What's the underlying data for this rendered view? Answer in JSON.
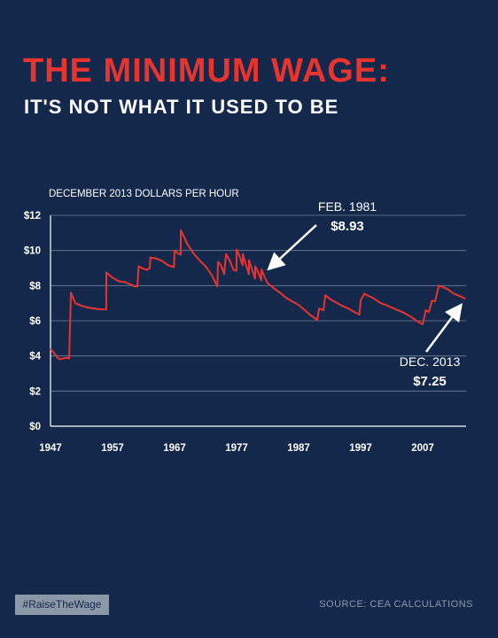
{
  "header": {
    "title": "THE MINIMUM WAGE:",
    "subtitle": "IT'S NOT WHAT IT USED TO BE"
  },
  "chart_data": {
    "type": "line",
    "ylabel": "DECEMBER 2013 DOLLARS PER HOUR",
    "xlim": [
      1947,
      2014
    ],
    "ylim": [
      0,
      12
    ],
    "x_ticks": [
      1947,
      1957,
      1967,
      1977,
      1987,
      1997,
      2007
    ],
    "x_tick_labels": [
      "1947",
      "1957",
      "1967",
      "1977",
      "1987",
      "1997",
      "2007"
    ],
    "y_ticks": [
      0,
      2,
      4,
      6,
      8,
      10,
      12
    ],
    "y_tick_labels": [
      "$0",
      "$2",
      "$4",
      "$6",
      "$8",
      "$10",
      "$12"
    ],
    "grid": true,
    "line_color": "#e8332f",
    "series": [
      {
        "x": [
          1947,
          1947.5,
          1948,
          1948.5,
          1949,
          1949.6,
          1950,
          1950.3,
          1951,
          1952,
          1953,
          1954,
          1955,
          1955.99,
          1956,
          1956.5,
          1957,
          1958,
          1959,
          1960,
          1960.6,
          1961,
          1961.2,
          1962,
          1962.6,
          1963,
          1963.1,
          1964,
          1965,
          1966,
          1966.9,
          1967,
          1967.5,
          1967.99,
          1968,
          1968.5,
          1969,
          1970,
          1971,
          1972,
          1973,
          1973.9,
          1974,
          1974.5,
          1975,
          1975.3,
          1976,
          1976.5,
          1976.99,
          1977,
          1977.4,
          1977.99,
          1978,
          1978.5,
          1978.99,
          1979,
          1979.5,
          1979.99,
          1980,
          1980.5,
          1980.99,
          1981,
          1981.5,
          1982,
          1983,
          1984,
          1985,
          1986,
          1987,
          1988,
          1989,
          1990,
          1990.3,
          1991,
          1991.3,
          1992,
          1993,
          1994,
          1995,
          1996,
          1996.8,
          1997,
          1997.6,
          1998,
          1999,
          2000,
          2001,
          2002,
          2003,
          2004,
          2005,
          2006,
          2007,
          2007.5,
          2008,
          2008.5,
          2009,
          2009.6,
          2010,
          2011,
          2012,
          2013,
          2013.9
        ],
        "y": [
          4.4,
          4.2,
          3.95,
          3.8,
          3.85,
          3.9,
          3.85,
          7.6,
          7.0,
          6.85,
          6.75,
          6.7,
          6.65,
          6.65,
          8.75,
          8.6,
          8.45,
          8.25,
          8.2,
          8.05,
          7.95,
          7.95,
          9.1,
          8.95,
          8.9,
          9.0,
          9.6,
          9.55,
          9.4,
          9.15,
          9.05,
          10.0,
          9.85,
          9.75,
          11.15,
          10.8,
          10.4,
          9.85,
          9.45,
          9.1,
          8.6,
          7.95,
          9.35,
          9.15,
          8.65,
          9.8,
          9.35,
          8.9,
          8.85,
          10.05,
          9.75,
          9.15,
          9.8,
          9.2,
          8.65,
          9.45,
          8.9,
          8.4,
          9.1,
          8.75,
          8.3,
          8.93,
          8.5,
          8.15,
          7.85,
          7.6,
          7.3,
          7.1,
          6.9,
          6.6,
          6.3,
          6.05,
          6.7,
          6.6,
          7.45,
          7.25,
          7.05,
          6.85,
          6.7,
          6.5,
          6.35,
          7.15,
          7.55,
          7.45,
          7.3,
          7.05,
          6.9,
          6.75,
          6.6,
          6.45,
          6.25,
          6.0,
          5.8,
          6.6,
          6.5,
          7.15,
          7.1,
          8.0,
          7.95,
          7.8,
          7.55,
          7.4,
          7.25
        ]
      }
    ],
    "annotations": [
      {
        "line1": "FEB. 1981",
        "line2": "$8.93",
        "x": 1981.1,
        "y": 8.93
      },
      {
        "line1": "DEC. 2013",
        "line2": "$7.25",
        "x": 2013,
        "y": 7.25
      }
    ]
  },
  "footer": {
    "hashtag": "#RaiseTheWage",
    "source": "SOURCE: CEA CALCULATIONS"
  }
}
